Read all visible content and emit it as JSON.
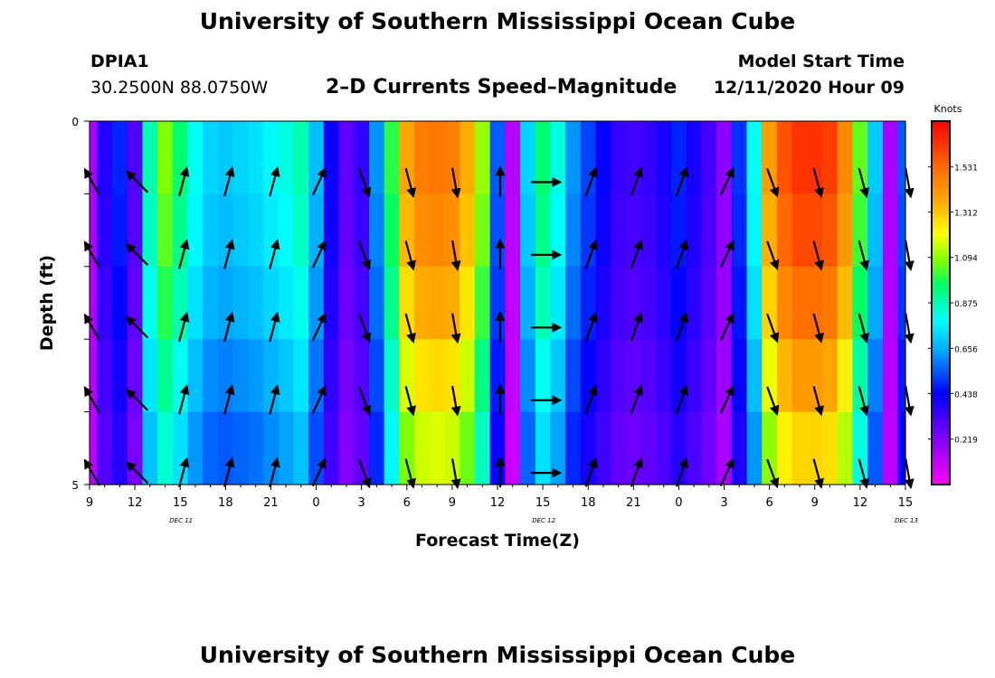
{
  "header": {
    "title": "University of Southern Mississippi Ocean Cube",
    "station": "DPIA1",
    "coords": "30.2500N 88.0750W",
    "chart_title": "2–D Currents Speed–Magnitude",
    "start_label": "Model Start Time",
    "start_value": "12/11/2020 Hour 09"
  },
  "footer": {
    "title": "University of Southern Mississippi Ocean Cube"
  },
  "chart_data": {
    "type": "heatmap",
    "title": "2–D Currents Speed–Magnitude",
    "xlabel": "Forecast Time(Z)",
    "ylabel": "Depth (ft)",
    "colorbar_label": "Knots",
    "colorbar_ticks": [
      "1.531",
      "1.312",
      "1.094",
      "0.875",
      "0.656",
      "0.438",
      "0.219"
    ],
    "colorbar_range": [
      0,
      1.75
    ],
    "y_ticks": [
      "0",
      "5"
    ],
    "ylim": [
      0,
      5
    ],
    "x_tick_labels": [
      "9",
      "12",
      "15",
      "18",
      "21",
      "0",
      "3",
      "6",
      "9",
      "12",
      "15",
      "18",
      "21",
      "0",
      "3",
      "6",
      "9",
      "12",
      "15"
    ],
    "date_labels": [
      {
        "text": "DEC  11",
        "hour_offset": 6
      },
      {
        "text": "DEC  12",
        "hour_offset": 30
      },
      {
        "text": "DEC  13",
        "hour_offset": 54
      }
    ],
    "hours_from_start": [
      0,
      1,
      2,
      3,
      4,
      5,
      6,
      7,
      8,
      9,
      10,
      11,
      12,
      13,
      14,
      15,
      16,
      17,
      18,
      19,
      20,
      21,
      22,
      23,
      24,
      25,
      26,
      27,
      28,
      29,
      30,
      31,
      32,
      33,
      34,
      35,
      36,
      37,
      38,
      39,
      40,
      41,
      42,
      43,
      44,
      45,
      46,
      47,
      48,
      49,
      50,
      51,
      52,
      53,
      54
    ],
    "depth_bins": [
      0,
      1,
      2,
      3,
      4
    ],
    "speed_profile": [
      0.15,
      0.38,
      0.48,
      0.3,
      0.88,
      1.08,
      0.95,
      0.8,
      0.72,
      0.7,
      0.72,
      0.74,
      0.78,
      0.82,
      0.88,
      0.68,
      0.42,
      0.28,
      0.35,
      0.62,
      1.0,
      1.38,
      1.48,
      1.5,
      1.48,
      1.36,
      1.1,
      0.55,
      0.12,
      0.72,
      0.95,
      0.82,
      0.62,
      0.52,
      0.43,
      0.35,
      0.33,
      0.35,
      0.4,
      0.48,
      0.4,
      0.32,
      0.2,
      0.5,
      0.8,
      1.4,
      1.58,
      1.65,
      1.65,
      1.62,
      1.45,
      1.05,
      0.7,
      0.15,
      0.55
    ],
    "depth_factor": [
      1.0,
      0.97,
      0.92,
      0.85,
      0.78
    ],
    "arrows": {
      "hours": [
        0,
        3,
        6,
        9,
        12,
        15,
        18,
        21,
        24,
        27,
        30,
        33,
        36,
        39,
        42,
        45,
        48,
        51,
        54
      ],
      "directions_deg": [
        330,
        315,
        15,
        15,
        15,
        25,
        160,
        165,
        170,
        0,
        90,
        20,
        20,
        20,
        25,
        160,
        165,
        165,
        170
      ]
    }
  }
}
